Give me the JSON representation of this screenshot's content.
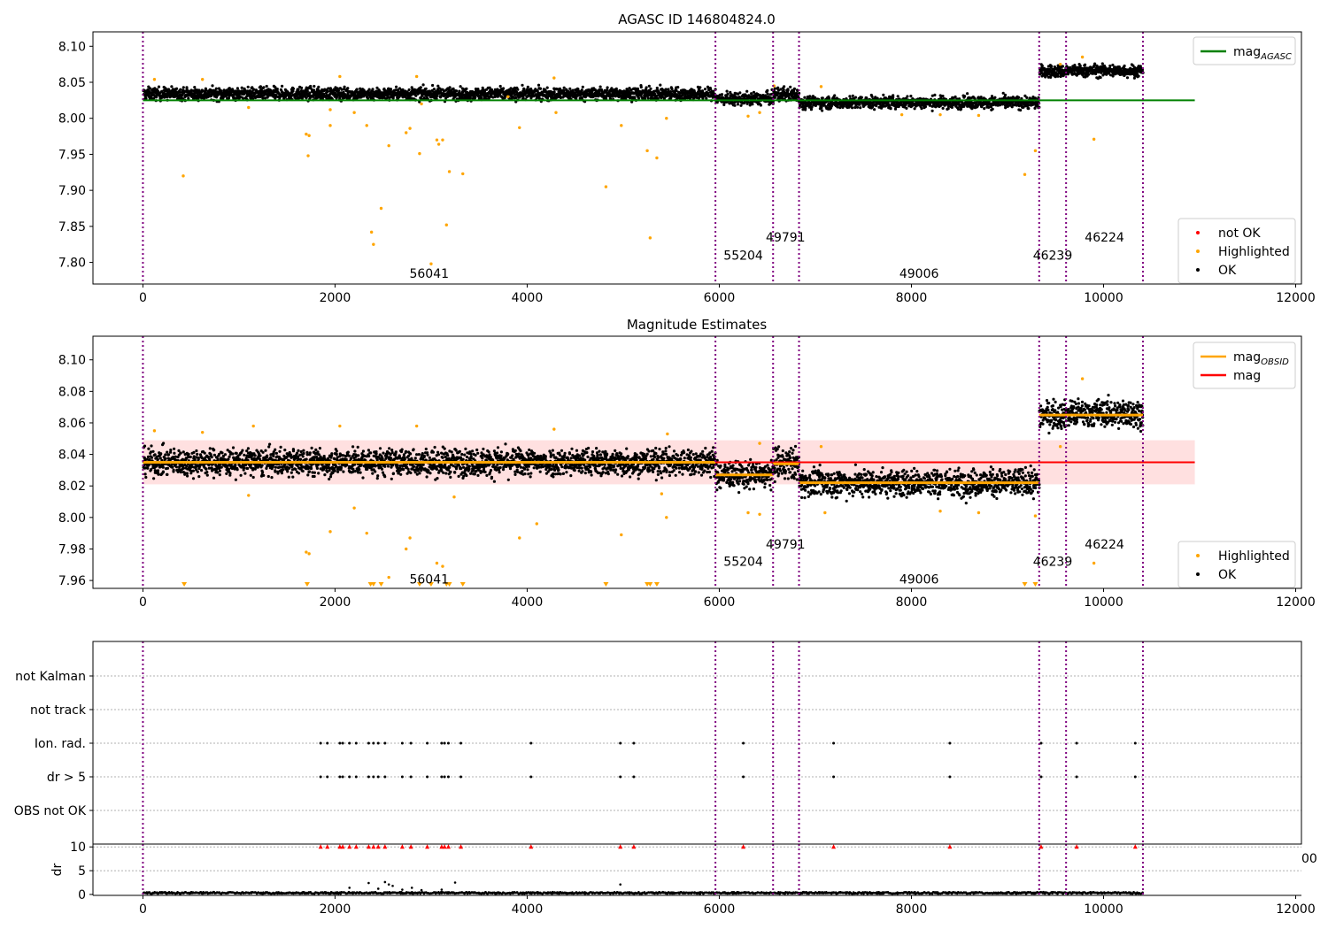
{
  "chart_data": [
    {
      "type": "scatter",
      "title": "AGASC ID 146804824.0",
      "xlim": [
        -520,
        12060
      ],
      "ylim": [
        7.77,
        8.12
      ],
      "x_ticks": [
        0,
        2000,
        4000,
        6000,
        8000,
        10000,
        12000
      ],
      "y_ticks": [
        8.1,
        8.05,
        8.0,
        7.95,
        7.9,
        7.85,
        7.8
      ],
      "y_tick_labels": [
        "8.10",
        "8.05",
        "8.00",
        "7.95",
        "7.90",
        "7.85",
        "7.80"
      ],
      "obs_boundaries": [
        0,
        5960,
        6560,
        6830,
        9330,
        9610,
        10410
      ],
      "obsid_labels": [
        {
          "text": "56041",
          "x": 2980,
          "y": 7.785
        },
        {
          "text": "55204",
          "x": 6250,
          "y": 7.81
        },
        {
          "text": "49791",
          "x": 6690,
          "y": 7.835
        },
        {
          "text": "49006",
          "x": 8080,
          "y": 7.785
        },
        {
          "text": "46239",
          "x": 9470,
          "y": 7.81
        },
        {
          "text": "46224",
          "x": 10010,
          "y": 7.835
        }
      ],
      "segments": [
        {
          "x": [
            0,
            5960
          ],
          "mean": 8.034,
          "spread": 0.006
        },
        {
          "x": [
            5960,
            6560
          ],
          "mean": 8.027,
          "spread": 0.006
        },
        {
          "x": [
            6560,
            6830
          ],
          "mean": 8.033,
          "spread": 0.007
        },
        {
          "x": [
            6830,
            9330
          ],
          "mean": 8.022,
          "spread": 0.006
        },
        {
          "x": [
            9330,
            9610
          ],
          "mean": 8.065,
          "spread": 0.006
        },
        {
          "x": [
            9610,
            10410
          ],
          "mean": 8.066,
          "spread": 0.006
        }
      ],
      "lines": [
        {
          "name": "mag_AGASC",
          "color": "#008000",
          "x": [
            0,
            10950
          ],
          "y": 8.025
        }
      ],
      "highlighted_points": [
        [
          420,
          7.92
        ],
        [
          1700,
          7.978
        ],
        [
          1720,
          7.948
        ],
        [
          1730,
          7.976
        ],
        [
          1950,
          7.99
        ],
        [
          2330,
          7.99
        ],
        [
          2380,
          7.842
        ],
        [
          2400,
          7.825
        ],
        [
          2480,
          7.875
        ],
        [
          2560,
          7.962
        ],
        [
          2740,
          7.98
        ],
        [
          2780,
          7.986
        ],
        [
          2880,
          7.951
        ],
        [
          3000,
          7.798
        ],
        [
          3060,
          7.97
        ],
        [
          3080,
          7.964
        ],
        [
          3120,
          7.97
        ],
        [
          3160,
          7.852
        ],
        [
          3190,
          7.926
        ],
        [
          3330,
          7.923
        ],
        [
          3920,
          7.987
        ],
        [
          4820,
          7.905
        ],
        [
          4980,
          7.99
        ],
        [
          5250,
          7.955
        ],
        [
          5280,
          7.834
        ],
        [
          5350,
          7.945
        ],
        [
          6300,
          8.003
        ],
        [
          6420,
          8.008
        ],
        [
          9180,
          7.922
        ],
        [
          9290,
          7.955
        ],
        [
          9900,
          7.971
        ],
        [
          1100,
          8.015
        ],
        [
          1950,
          8.012
        ],
        [
          2200,
          8.008
        ],
        [
          2900,
          8.02
        ],
        [
          3800,
          8.03
        ],
        [
          4300,
          8.008
        ],
        [
          5450,
          8.0
        ],
        [
          7900,
          8.005
        ],
        [
          8300,
          8.005
        ],
        [
          8700,
          8.004
        ],
        [
          9780,
          8.085
        ],
        [
          9550,
          8.075
        ],
        [
          120,
          8.054
        ],
        [
          620,
          8.054
        ],
        [
          2050,
          8.058
        ],
        [
          2850,
          8.058
        ],
        [
          4280,
          8.056
        ],
        [
          6570,
          8.045
        ],
        [
          7060,
          8.044
        ]
      ],
      "legends": [
        {
          "position": "upper right",
          "items": [
            {
              "label": "mag",
              "sub": "AGASC",
              "kind": "line",
              "color": "#008000"
            }
          ]
        },
        {
          "position": "lower right",
          "items": [
            {
              "label": "not OK",
              "kind": "dot",
              "color": "#ff0000"
            },
            {
              "label": "Highlighted",
              "kind": "dot",
              "color": "#ffa500"
            },
            {
              "label": "OK",
              "kind": "dot",
              "color": "#000000"
            }
          ]
        }
      ]
    },
    {
      "type": "scatter",
      "title": "Magnitude Estimates",
      "xlim": [
        -520,
        12060
      ],
      "ylim": [
        7.955,
        8.115
      ],
      "x_ticks": [
        0,
        2000,
        4000,
        6000,
        8000,
        10000,
        12000
      ],
      "y_ticks": [
        8.1,
        8.08,
        8.06,
        8.04,
        8.02,
        8.0,
        7.98,
        7.96
      ],
      "y_tick_labels": [
        "8.10",
        "8.08",
        "8.06",
        "8.04",
        "8.02",
        "8.00",
        "7.98",
        "7.96"
      ],
      "obs_boundaries": [
        0,
        5960,
        6560,
        6830,
        9330,
        9610,
        10410
      ],
      "obsid_labels": [
        {
          "text": "56041",
          "x": 2980,
          "y": 7.961
        },
        {
          "text": "55204",
          "x": 6250,
          "y": 7.972
        },
        {
          "text": "49791",
          "x": 6690,
          "y": 7.983
        },
        {
          "text": "49006",
          "x": 8080,
          "y": 7.961
        },
        {
          "text": "46239",
          "x": 9470,
          "y": 7.972
        },
        {
          "text": "46224",
          "x": 10010,
          "y": 7.983
        }
      ],
      "segments": [
        {
          "x": [
            0,
            5960
          ],
          "mean": 8.035,
          "spread": 0.006
        },
        {
          "x": [
            5960,
            6560
          ],
          "mean": 8.027,
          "spread": 0.006
        },
        {
          "x": [
            6560,
            6830
          ],
          "mean": 8.034,
          "spread": 0.007
        },
        {
          "x": [
            6830,
            9330
          ],
          "mean": 8.022,
          "spread": 0.006
        },
        {
          "x": [
            9330,
            9610
          ],
          "mean": 8.065,
          "spread": 0.006
        },
        {
          "x": [
            9610,
            10410
          ],
          "mean": 8.066,
          "spread": 0.006
        }
      ],
      "band": {
        "x": [
          0,
          10950
        ],
        "y": [
          8.021,
          8.049
        ],
        "color": "#ffcccc"
      },
      "lines": [
        {
          "name": "mag",
          "color": "#ff0000",
          "x": [
            0,
            10950
          ],
          "y": 8.035
        },
        {
          "name": "mag_OBSID",
          "color": "#ffa500",
          "x": [
            0,
            5960
          ],
          "y": 8.035
        },
        {
          "name": "mag_OBSID",
          "color": "#ffa500",
          "x": [
            5960,
            6560
          ],
          "y": 8.027
        },
        {
          "name": "mag_OBSID",
          "color": "#ffa500",
          "x": [
            6560,
            6830
          ],
          "y": 8.034
        },
        {
          "name": "mag_OBSID",
          "color": "#ffa500",
          "x": [
            6830,
            9330
          ],
          "y": 8.022
        },
        {
          "name": "mag_OBSID",
          "color": "#ffa500",
          "x": [
            9330,
            10410
          ],
          "y": 8.065
        }
      ],
      "highlighted_points": [
        [
          1700,
          7.978
        ],
        [
          1730,
          7.977
        ],
        [
          1950,
          7.991
        ],
        [
          2330,
          7.99
        ],
        [
          2560,
          7.962
        ],
        [
          2740,
          7.98
        ],
        [
          2780,
          7.987
        ],
        [
          3060,
          7.971
        ],
        [
          3120,
          7.969
        ],
        [
          3920,
          7.987
        ],
        [
          4100,
          7.996
        ],
        [
          4980,
          7.989
        ],
        [
          5450,
          8.0
        ],
        [
          6300,
          8.003
        ],
        [
          6420,
          8.002
        ],
        [
          9290,
          8.001
        ],
        [
          9900,
          7.971
        ],
        [
          120,
          8.055
        ],
        [
          620,
          8.054
        ],
        [
          1150,
          8.058
        ],
        [
          2050,
          8.058
        ],
        [
          2850,
          8.058
        ],
        [
          4280,
          8.056
        ],
        [
          5460,
          8.053
        ],
        [
          6420,
          8.047
        ],
        [
          7060,
          8.045
        ],
        [
          9780,
          8.088
        ],
        [
          9550,
          8.045
        ],
        [
          1100,
          8.014
        ],
        [
          2200,
          8.006
        ],
        [
          3240,
          8.013
        ],
        [
          5400,
          8.015
        ],
        [
          7100,
          8.003
        ],
        [
          8300,
          8.004
        ],
        [
          8700,
          8.003
        ]
      ],
      "clipped_low_points": [
        430,
        1710,
        2370,
        2400,
        2480,
        2880,
        3000,
        3160,
        3190,
        3330,
        4820,
        5250,
        5280,
        5350,
        9180,
        9290
      ],
      "legends": [
        {
          "position": "upper right",
          "items": [
            {
              "label": "mag",
              "sub": "OBSID",
              "kind": "line",
              "color": "#ffa500"
            },
            {
              "label": "mag",
              "kind": "line",
              "color": "#ff0000"
            }
          ]
        },
        {
          "position": "lower right",
          "items": [
            {
              "label": "Highlighted",
              "kind": "dot",
              "color": "#ffa500"
            },
            {
              "label": "OK",
              "kind": "dot",
              "color": "#000000"
            }
          ]
        }
      ]
    },
    {
      "type": "scatter",
      "title": "",
      "xlim": [
        -520,
        12060
      ],
      "y_categories": [
        "not Kalman",
        "not track",
        "Ion. rad.",
        "dr > 5",
        "OBS not OK"
      ],
      "obs_boundaries": [
        0,
        5960,
        6560,
        6830,
        9330,
        9610,
        10410
      ],
      "flag_x": {
        "Ion. rad.": [
          1850,
          1920,
          2050,
          2080,
          2150,
          2220,
          2350,
          2400,
          2450,
          2520,
          2700,
          2790,
          2960,
          3110,
          3140,
          3180,
          3310,
          4040,
          4970,
          5110,
          6250,
          7190,
          8400,
          9350,
          9720,
          10330
        ],
        "dr > 5": [
          1850,
          1920,
          2050,
          2080,
          2150,
          2220,
          2350,
          2400,
          2450,
          2520,
          2700,
          2790,
          2960,
          3110,
          3140,
          3180,
          3310,
          4040,
          4970,
          5110,
          6250,
          7190,
          8400,
          9350,
          9720,
          10330
        ]
      }
    },
    {
      "type": "scatter",
      "title": "",
      "ylabel": "dr",
      "xlim": [
        -520,
        12060
      ],
      "ylim": [
        -0.2,
        10.6
      ],
      "x_ticks": [
        0,
        2000,
        4000,
        6000,
        8000,
        10000,
        12000
      ],
      "y_ticks": [
        10,
        5,
        0
      ],
      "obs_boundaries": [
        0,
        5960,
        6560,
        6830,
        9330,
        9610,
        10410
      ],
      "clipped_high_points": [
        1850,
        1920,
        2050,
        2080,
        2150,
        2220,
        2350,
        2400,
        2450,
        2520,
        2700,
        2790,
        2960,
        3110,
        3140,
        3180,
        3310,
        4040,
        4970,
        5110,
        6250,
        7190,
        8400,
        9350,
        9720,
        10330
      ],
      "elevated_points": [
        [
          2150,
          1.4
        ],
        [
          2350,
          2.4
        ],
        [
          2450,
          1.2
        ],
        [
          2520,
          2.6
        ],
        [
          2560,
          2.1
        ],
        [
          2600,
          1.8
        ],
        [
          2700,
          1.0
        ],
        [
          3250,
          2.5
        ],
        [
          3110,
          1.0
        ],
        [
          4970,
          2.1
        ],
        [
          2800,
          1.4
        ],
        [
          2900,
          0.9
        ]
      ],
      "partial_tick_text": "00"
    }
  ],
  "colors": {
    "ok": "#000000",
    "highlighted": "#ffa500",
    "not_ok": "#ff0000",
    "obs_boundary": "#800080",
    "agasc_line": "#008000",
    "mag_line": "#ff0000",
    "obsid_line": "#ffa500"
  }
}
